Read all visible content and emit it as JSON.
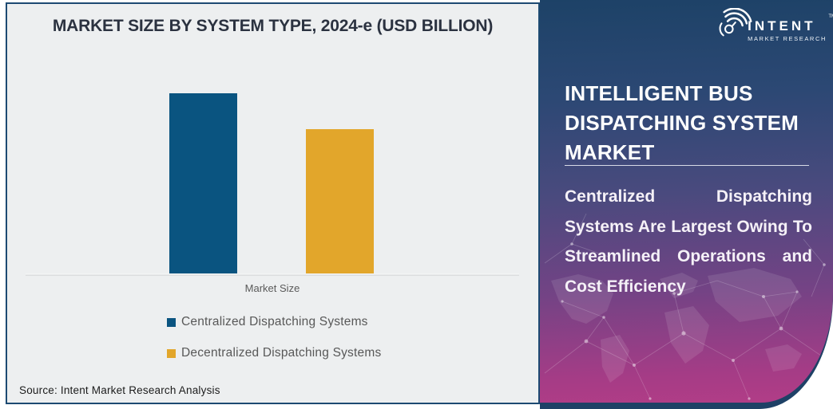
{
  "chart": {
    "title": "MARKET SIZE BY SYSTEM TYPE, 2024-e (USD BILLION)",
    "x_axis_label": "Market Size",
    "source": "Source: Intent Market Research Analysis",
    "legend": [
      {
        "label": "Centralized Dispatching Systems",
        "color": "#0a5480"
      },
      {
        "label": "Decentralized Dispatching Systems",
        "color": "#e2a62b"
      }
    ]
  },
  "chart_data": {
    "type": "bar",
    "title": "MARKET SIZE BY SYSTEM TYPE, 2024-e (USD BILLION)",
    "categories": [
      "Centralized Dispatching Systems",
      "Decentralized Dispatching Systems"
    ],
    "x_group_label": "Market Size",
    "values_relative_pct_of_tallest": [
      100,
      80
    ],
    "value_axis": "unlabeled (USD Billion); no tick labels or data labels shown",
    "colors": [
      "#0a5480",
      "#e2a62b"
    ],
    "legend_position": "below plot, left-of-center, stacked vertically",
    "grid": false,
    "baseline_only_axis": true
  },
  "side_panel": {
    "logo": {
      "brand": "INTENT",
      "sub": "MARKET RESEARCH",
      "tm": "TM",
      "icon": "radar-signal-magnifier-icon"
    },
    "heading": "INTELLIGENT BUS DISPATCHING SYSTEM MARKET",
    "heading_lines": [
      "INTELLIGENT BUS",
      "DISPATCHING SYSTEM",
      "MARKET"
    ],
    "description": "Centralized Dispatching Systems Are Largest Owing To Streamlined Operations and Cost Efficiency",
    "description_lines": [
      "Centralized Dispatching",
      "Systems Are Largest Owing To",
      "Streamlined Operations and",
      "Cost Efficiency"
    ],
    "colors": {
      "gradient_top": "#1d4267",
      "gradient_bottom": "#b23d87",
      "trim_navy": "#1e4166"
    }
  }
}
